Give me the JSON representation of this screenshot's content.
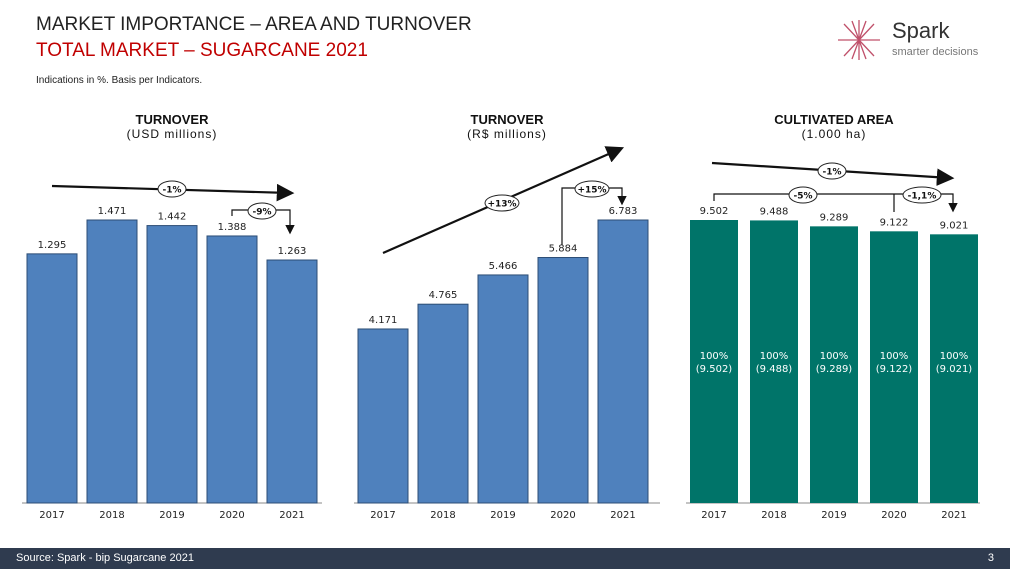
{
  "header": {
    "title": "MARKET IMPORTANCE  – AREA AND TURNOVER",
    "subtitle": "TOTAL MARKET – SUGARCANE 2021",
    "note": "Indications in %. Basis per Indicators."
  },
  "logo": {
    "name": "Spark",
    "tagline": "smarter decisions",
    "color": "#c0506a"
  },
  "footer": {
    "source": "Source: Spark - bip Sugarcane 2021",
    "page": "3"
  },
  "chart_data": [
    {
      "type": "bar",
      "title": "TURNOVER",
      "unit": "(USD millions)",
      "categories": [
        "2017",
        "2018",
        "2019",
        "2020",
        "2021"
      ],
      "values": [
        1295,
        1471,
        1442,
        1388,
        1263
      ],
      "labels": [
        "1.295",
        "1.471",
        "1.442",
        "1.388",
        "1.263"
      ],
      "ylim": [
        0,
        1471
      ],
      "color": "#4f81bd",
      "annotations": {
        "overall": "-1%",
        "last": "-9%"
      }
    },
    {
      "type": "bar",
      "title": "TURNOVER",
      "unit": "(R$ millions)",
      "categories": [
        "2017",
        "2018",
        "2019",
        "2020",
        "2021"
      ],
      "values": [
        4171,
        4765,
        5466,
        5884,
        6783
      ],
      "labels": [
        "4.171",
        "4.765",
        "5.466",
        "5.884",
        "6.783"
      ],
      "ylim": [
        0,
        6783
      ],
      "color": "#4f81bd",
      "annotations": {
        "overall": "+13%",
        "last": "+15%"
      }
    },
    {
      "type": "bar",
      "title": "CULTIVATED AREA",
      "unit": "(1.000 ha)",
      "categories": [
        "2017",
        "2018",
        "2019",
        "2020",
        "2021"
      ],
      "values": [
        9502,
        9488,
        9289,
        9122,
        9021
      ],
      "labels": [
        "9.502",
        "9.488",
        "9.289",
        "9.122",
        "9.021"
      ],
      "inner_labels": [
        [
          "100%",
          "(9.502)"
        ],
        [
          "100%",
          "(9.488)"
        ],
        [
          "100%",
          "(9.289)"
        ],
        [
          "100%",
          "(9.122)"
        ],
        [
          "100%",
          "(9.021)"
        ]
      ],
      "ylim": [
        0,
        9502
      ],
      "color": "#007469",
      "annotations": {
        "overall": "-1%",
        "span": "-5%",
        "last": "-1,1%"
      }
    }
  ]
}
